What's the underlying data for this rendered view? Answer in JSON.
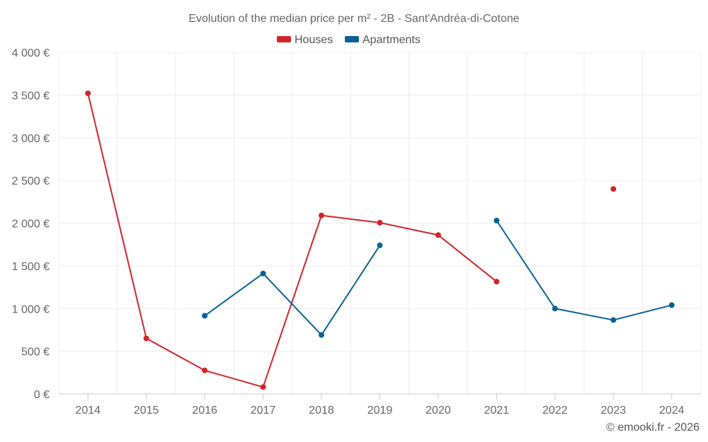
{
  "chart_data": {
    "type": "line",
    "title": "Evolution of the median price per m² - 2B - Sant'Andréa-di-Cotone",
    "categories": [
      "2014",
      "2015",
      "2016",
      "2017",
      "2018",
      "2019",
      "2020",
      "2021",
      "2022",
      "2023",
      "2024"
    ],
    "ylim": [
      0,
      4000
    ],
    "yticks": [
      0,
      500,
      1000,
      1500,
      2000,
      2500,
      3000,
      3500,
      4000
    ],
    "ytick_labels": [
      "0 €",
      "500 €",
      "1 000 €",
      "1 500 €",
      "2 000 €",
      "2 500 €",
      "3 000 €",
      "3 500 €",
      "4 000 €"
    ],
    "grid": true,
    "legend_position": "top-center",
    "series": [
      {
        "name": "Houses",
        "color": "#d0262a",
        "values": [
          3520,
          650,
          275,
          80,
          2090,
          2005,
          1860,
          1315,
          null,
          2400,
          null
        ]
      },
      {
        "name": "Apartments",
        "color": "#0a6196",
        "values": [
          null,
          null,
          915,
          1410,
          690,
          1740,
          null,
          2030,
          1000,
          865,
          1040
        ]
      }
    ],
    "credit": "© emooki.fr - 2026"
  }
}
